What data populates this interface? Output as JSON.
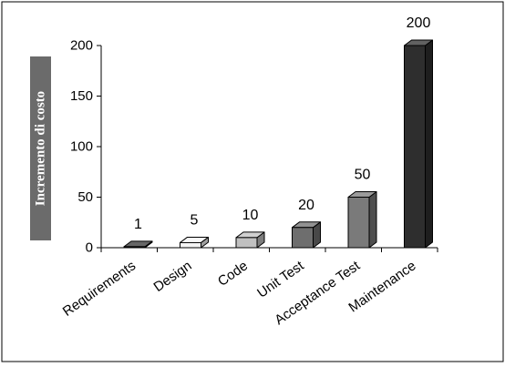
{
  "chart_data": {
    "type": "bar",
    "categories": [
      "Requirements",
      "Design",
      "Code",
      "Unit Test",
      "Acceptance Test",
      "Maintenance"
    ],
    "values": [
      1,
      5,
      10,
      20,
      50,
      200
    ],
    "value_labels": [
      "1",
      "5",
      "10",
      "20",
      "50",
      "200"
    ],
    "ylabel": "Incremento di costo",
    "ylim": [
      0,
      200
    ],
    "yticks": [
      "0",
      "50",
      "100",
      "150",
      "200"
    ],
    "grid": false,
    "legend": "none",
    "bar_colors": [
      "#333333",
      "#f5f5f5",
      "#c0c0c0",
      "#6e6e6e",
      "#7a7a7a",
      "#2e2e2e"
    ],
    "axis_color": "#000000",
    "ylabel_bg": "#6b6b6b"
  }
}
